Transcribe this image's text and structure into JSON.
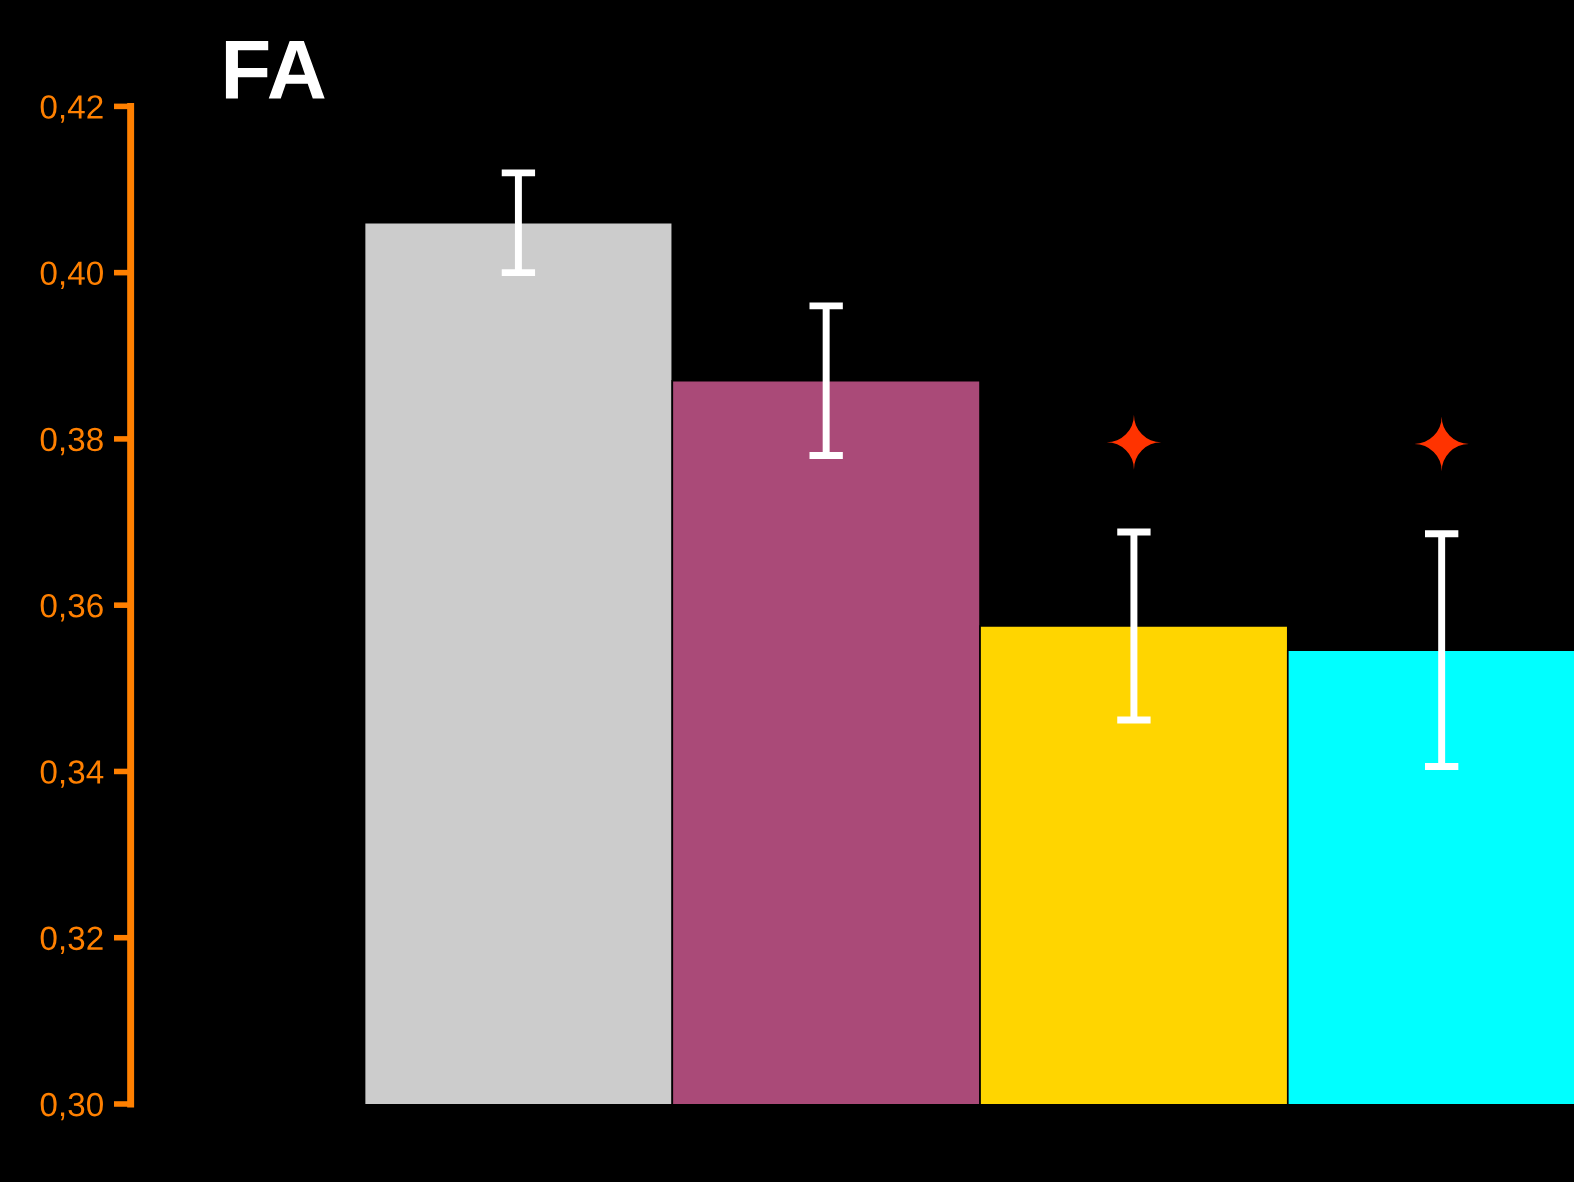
{
  "chart_data": {
    "type": "bar",
    "title": "FA",
    "categories": [
      null,
      null,
      null,
      null
    ],
    "series": [
      {
        "type": "bar",
        "colors": [
          "#cccccc",
          "#aa4a78",
          "#ffd500",
          "#00ffff"
        ],
        "values": [
          0.406,
          0.387,
          0.3575,
          0.3546
        ],
        "errors": [
          0.006,
          0.009,
          0.0113,
          0.014
        ],
        "value_labels": [
          null,
          null,
          "✦",
          "✦"
        ]
      }
    ],
    "ylim": [
      0.3,
      0.42
    ],
    "yticks": [
      {
        "value": 0.3,
        "label": "0,30"
      },
      {
        "value": 0.32,
        "label": "0,32"
      },
      {
        "value": 0.34,
        "label": "0,34"
      },
      {
        "value": 0.36,
        "label": "0,36"
      },
      {
        "value": 0.38,
        "label": "0,38"
      },
      {
        "value": 0.4,
        "label": "0,40"
      },
      {
        "value": 0.42,
        "label": "0,42"
      }
    ],
    "tick_labels": "y",
    "grid": false,
    "legend": false
  }
}
